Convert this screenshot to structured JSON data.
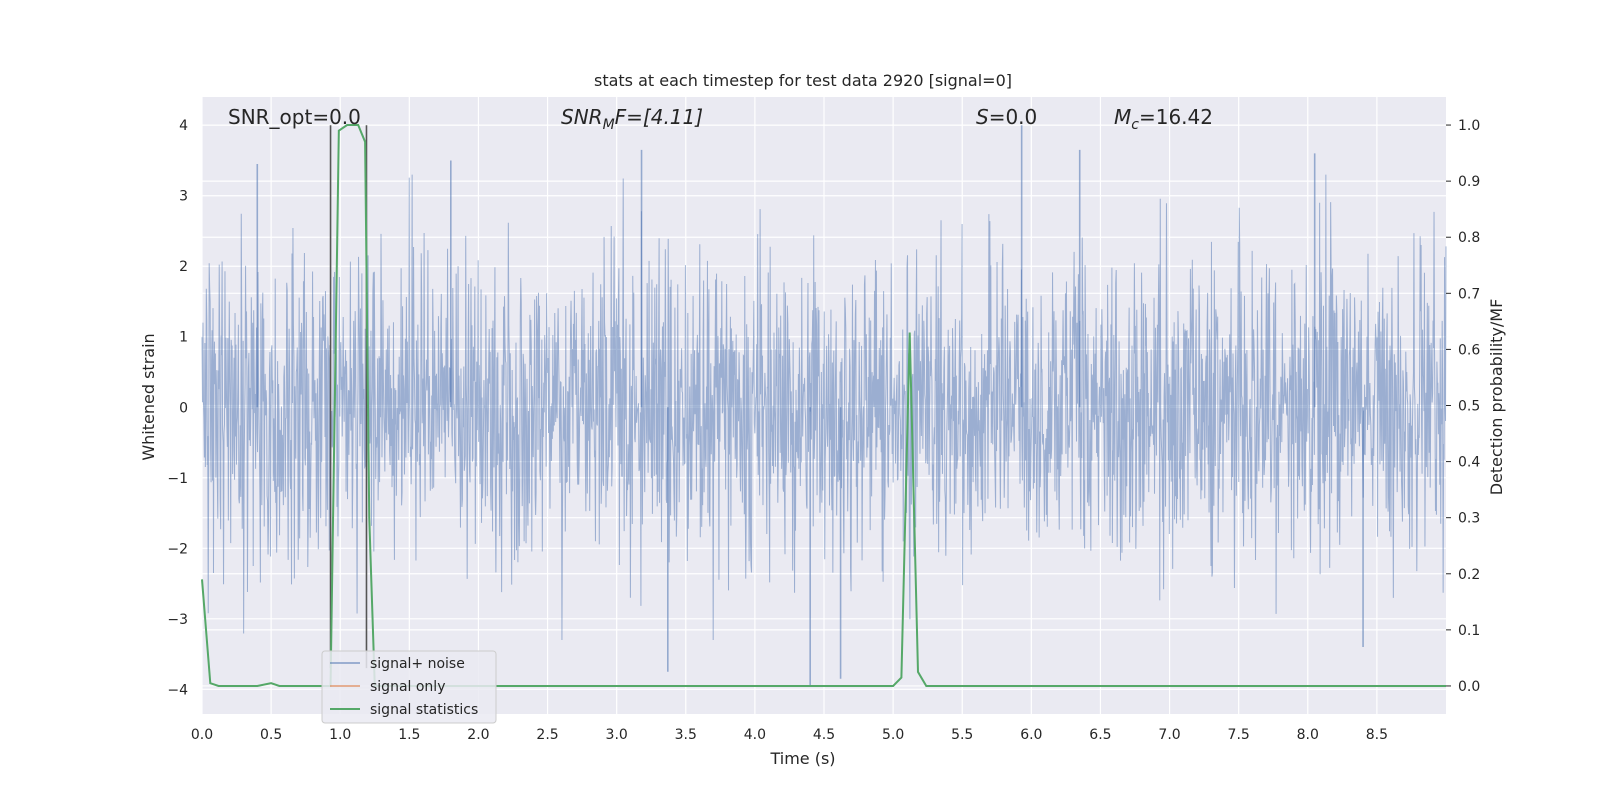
{
  "chart_data": {
    "type": "line",
    "title": "stats at each timestep for test data 2920 [signal=0]",
    "xlabel": "Time (s)",
    "ylabel": "Whitened strain",
    "ylabel_right": "Detection probability/MF",
    "xlim": [
      0.0,
      9.0
    ],
    "ylim": [
      -4.35,
      4.4
    ],
    "ylim_right": [
      -0.05,
      1.05
    ],
    "x_ticks": [
      "0.0",
      "0.5",
      "1.0",
      "1.5",
      "2.0",
      "2.5",
      "3.0",
      "3.5",
      "4.0",
      "4.5",
      "5.0",
      "5.5",
      "6.0",
      "6.5",
      "7.0",
      "7.5",
      "8.0",
      "8.5"
    ],
    "y_ticks": [
      "4",
      "3",
      "2",
      "1",
      "0",
      "−1",
      "−2",
      "−3",
      "−4"
    ],
    "y_ticks_right": [
      "1.0",
      "0.9",
      "0.8",
      "0.7",
      "0.6",
      "0.5",
      "0.4",
      "0.3",
      "0.2",
      "0.1",
      "0.0"
    ],
    "grid": true,
    "legend_position": "lower-left",
    "annotations": [
      {
        "text": "SNR_opt=0.0"
      },
      {
        "prefix": "SNR",
        "sub": "M",
        "suffix": "F=[4.11]"
      },
      {
        "italic": "S",
        "rest": "=0.0"
      },
      {
        "italic": "M",
        "sub": "c",
        "rest": "=16.42"
      }
    ],
    "series": [
      {
        "name": "signal+ noise",
        "color": "#4c72b0",
        "kind": "dense noise strain, amplitude roughly within ±2.7 with peaks near ±4",
        "notable_peaks": [
          {
            "x": 0.4,
            "y": 3.45
          },
          {
            "x": 1.8,
            "y": 3.5
          },
          {
            "x": 3.18,
            "y": 3.65
          },
          {
            "x": 4.4,
            "y": -3.95
          },
          {
            "x": 5.93,
            "y": 4.0
          },
          {
            "x": 6.35,
            "y": 3.65
          },
          {
            "x": 8.05,
            "y": 3.6
          },
          {
            "x": 3.37,
            "y": -3.75
          },
          {
            "x": 4.62,
            "y": -3.85
          },
          {
            "x": 8.4,
            "y": -3.4
          }
        ]
      },
      {
        "name": "signal only",
        "color": "#dd8452",
        "kind": "zero (no signal injected)"
      },
      {
        "name": "signal statistics",
        "color": "#55a868",
        "axis": "right",
        "x": [
          0.0,
          0.06,
          0.12,
          0.4,
          0.5,
          0.56,
          0.9,
          0.93,
          0.99,
          1.05,
          1.13,
          1.18,
          1.21,
          1.25,
          5.0,
          5.06,
          5.12,
          5.18,
          5.24,
          9.0
        ],
        "y": [
          0.19,
          0.005,
          0.0,
          0.0,
          0.005,
          0.0,
          0.0,
          0.0,
          0.99,
          1.0,
          1.0,
          0.97,
          0.3,
          0.0,
          0.0,
          0.015,
          0.63,
          0.025,
          0.0,
          0.0
        ]
      }
    ],
    "vertical_markers": [
      {
        "x": 0.93,
        "color": "#555555"
      },
      {
        "x": 1.19,
        "color": "#555555"
      }
    ]
  }
}
